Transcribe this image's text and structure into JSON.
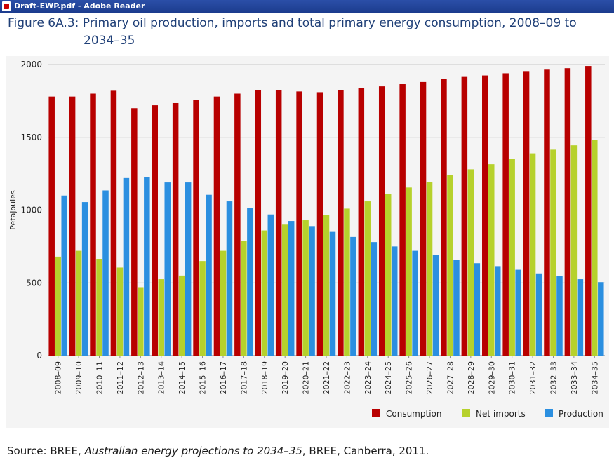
{
  "window": {
    "title": "Draft-EWP.pdf - Adobe Reader",
    "icon": "adobe-pdf-icon"
  },
  "figure": {
    "title_line1": "Figure 6A.3: Primary oil production, imports and total primary energy consumption, 2008–09 to",
    "title_line2": "2034–35"
  },
  "source": {
    "prefix": "Source: BREE, ",
    "italic": "Australian energy projections to 2034–35",
    "suffix": ", BREE, Canberra, 2011."
  },
  "colors": {
    "consumption": "#b80000",
    "net_imports": "#b6d12c",
    "production": "#2b8fe0"
  },
  "chart_data": {
    "type": "bar",
    "ylabel": "Petajoules",
    "xlabel": "",
    "ylim": [
      0,
      2000
    ],
    "yticks": [
      0,
      500,
      1000,
      1500,
      2000
    ],
    "grid": true,
    "legend_position": "bottom-right",
    "categories": [
      "2008–09",
      "2009–10",
      "2010–11",
      "2011–12",
      "2012–13",
      "2013–14",
      "2014–15",
      "2015–16",
      "2016–17",
      "2017–18",
      "2018–19",
      "2019–20",
      "2020–21",
      "2021–22",
      "2022–23",
      "2023–24",
      "2024–25",
      "2025–26",
      "2026–27",
      "2027–28",
      "2028–29",
      "2029–30",
      "2030–31",
      "2031–32",
      "2032–33",
      "2033–34",
      "2034–35"
    ],
    "series": [
      {
        "name": "Consumption",
        "values": [
          1780,
          1780,
          1800,
          1820,
          1700,
          1720,
          1735,
          1755,
          1780,
          1800,
          1825,
          1825,
          1815,
          1810,
          1825,
          1840,
          1850,
          1865,
          1880,
          1900,
          1915,
          1925,
          1940,
          1955,
          1965,
          1975,
          1990
        ]
      },
      {
        "name": "Net imports",
        "values": [
          680,
          720,
          665,
          605,
          470,
          525,
          550,
          650,
          720,
          790,
          860,
          900,
          930,
          965,
          1010,
          1060,
          1110,
          1155,
          1195,
          1240,
          1280,
          1315,
          1350,
          1390,
          1415,
          1445,
          1480
        ]
      },
      {
        "name": "Production",
        "values": [
          1100,
          1055,
          1135,
          1220,
          1225,
          1190,
          1190,
          1105,
          1060,
          1015,
          970,
          925,
          890,
          850,
          815,
          780,
          750,
          720,
          690,
          660,
          635,
          615,
          590,
          565,
          545,
          525,
          505
        ]
      }
    ]
  }
}
